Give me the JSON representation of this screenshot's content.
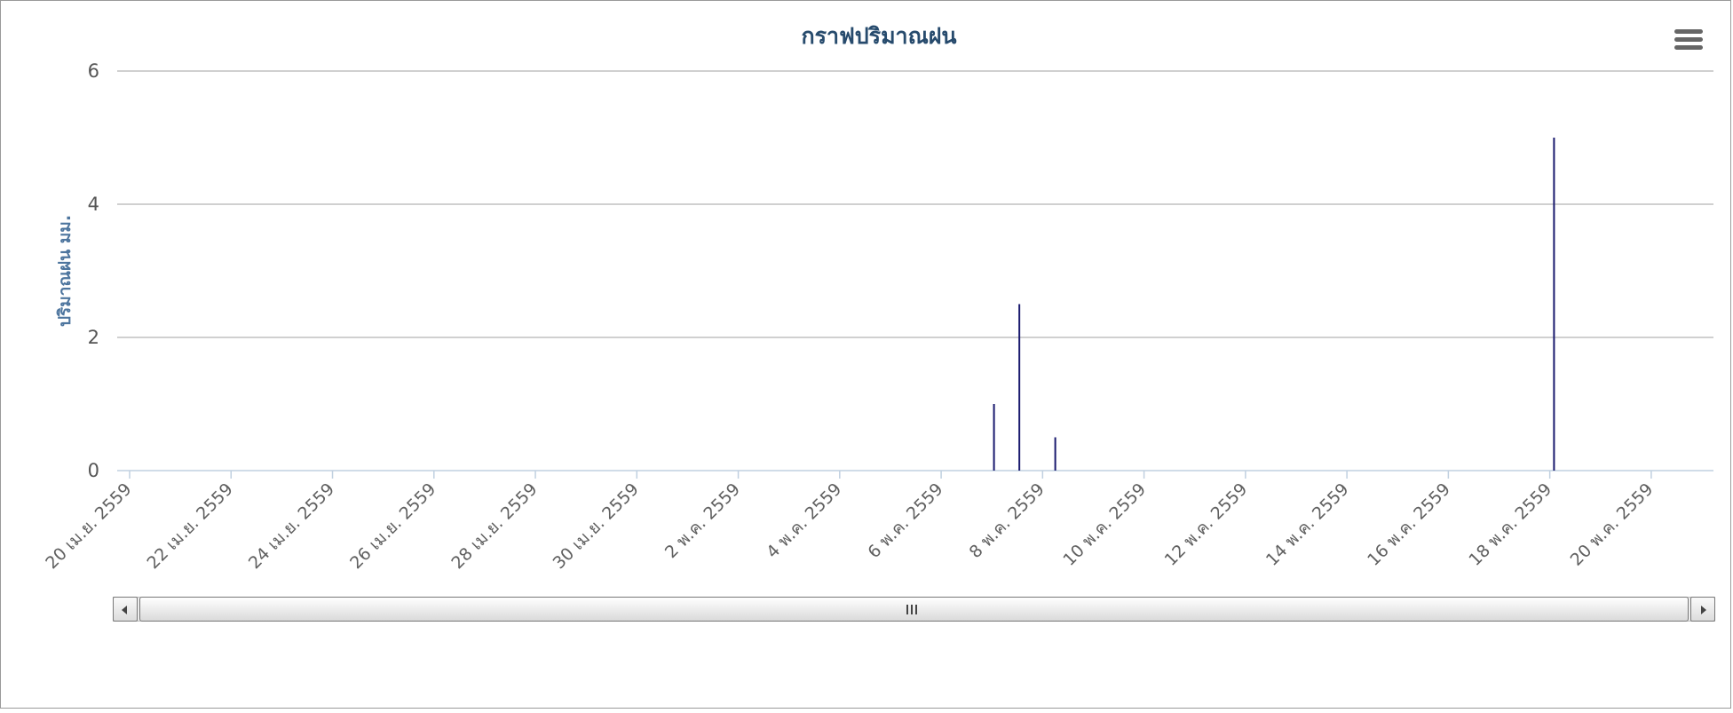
{
  "chart_data": {
    "type": "bar",
    "title": "กราฟปริมาณฝน",
    "ylabel": "ปริมาณฝน มม.",
    "xlabel": "",
    "ylim": [
      0,
      6
    ],
    "y_ticks": [
      "0",
      "2",
      "4",
      "6"
    ],
    "x_range": [
      "2016-04-20",
      "2016-05-21"
    ],
    "x_ticks": [
      {
        "date": "2016-04-20",
        "label": "20 เม.ย. 2559"
      },
      {
        "date": "2016-04-22",
        "label": "22 เม.ย. 2559"
      },
      {
        "date": "2016-04-24",
        "label": "24 เม.ย. 2559"
      },
      {
        "date": "2016-04-26",
        "label": "26 เม.ย. 2559"
      },
      {
        "date": "2016-04-28",
        "label": "28 เม.ย. 2559"
      },
      {
        "date": "2016-04-30",
        "label": "30 เม.ย. 2559"
      },
      {
        "date": "2016-05-02",
        "label": "2 พ.ค. 2559"
      },
      {
        "date": "2016-05-04",
        "label": "4 พ.ค. 2559"
      },
      {
        "date": "2016-05-06",
        "label": "6 พ.ค. 2559"
      },
      {
        "date": "2016-05-08",
        "label": "8 พ.ค. 2559"
      },
      {
        "date": "2016-05-10",
        "label": "10 พ.ค. 2559"
      },
      {
        "date": "2016-05-12",
        "label": "12 พ.ค. 2559"
      },
      {
        "date": "2016-05-14",
        "label": "14 พ.ค. 2559"
      },
      {
        "date": "2016-05-16",
        "label": "16 พ.ค. 2559"
      },
      {
        "date": "2016-05-18",
        "label": "18 พ.ค. 2559"
      },
      {
        "date": "2016-05-20",
        "label": "20 พ.ค. 2559"
      }
    ],
    "points": [
      {
        "x": "2016-05-07 01:00",
        "y": 1
      },
      {
        "x": "2016-05-07 13:00",
        "y": 2.5
      },
      {
        "x": "2016-05-08 06:00",
        "y": 0.5
      },
      {
        "x": "2016-05-18 02:00",
        "y": 5
      }
    ],
    "grid": true,
    "legend": "none",
    "colors": {
      "bar": "#1a1a6e",
      "title": "#274b6d",
      "axis_title": "#4d759e",
      "grid": "#c0c0c0",
      "x_axis": "#c0d0e0"
    }
  },
  "toolbar": {
    "menu_icon": "hamburger-menu-icon"
  },
  "scrollbar": {
    "left_icon": "arrow-left-icon",
    "right_icon": "arrow-right-icon",
    "grip_icon": "grip-icon"
  }
}
